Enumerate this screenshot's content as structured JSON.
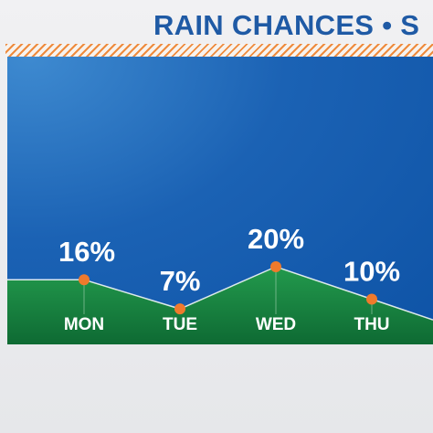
{
  "title": "RAIN CHANCES • S",
  "chart_data": {
    "type": "area",
    "categories": [
      "MON",
      "TUE",
      "WED",
      "THU"
    ],
    "values": [
      16,
      7,
      20,
      10
    ],
    "value_labels": [
      "16%",
      "7%",
      "20%",
      "10%"
    ],
    "ylim": [
      0,
      100
    ],
    "grid": false,
    "colors": {
      "area_top": "#239a4d",
      "area_bottom": "#0e6a33",
      "line": "#ffffff",
      "marker": "#ef7a2c",
      "background": "#1b62b4",
      "text": "#ffffff"
    }
  }
}
